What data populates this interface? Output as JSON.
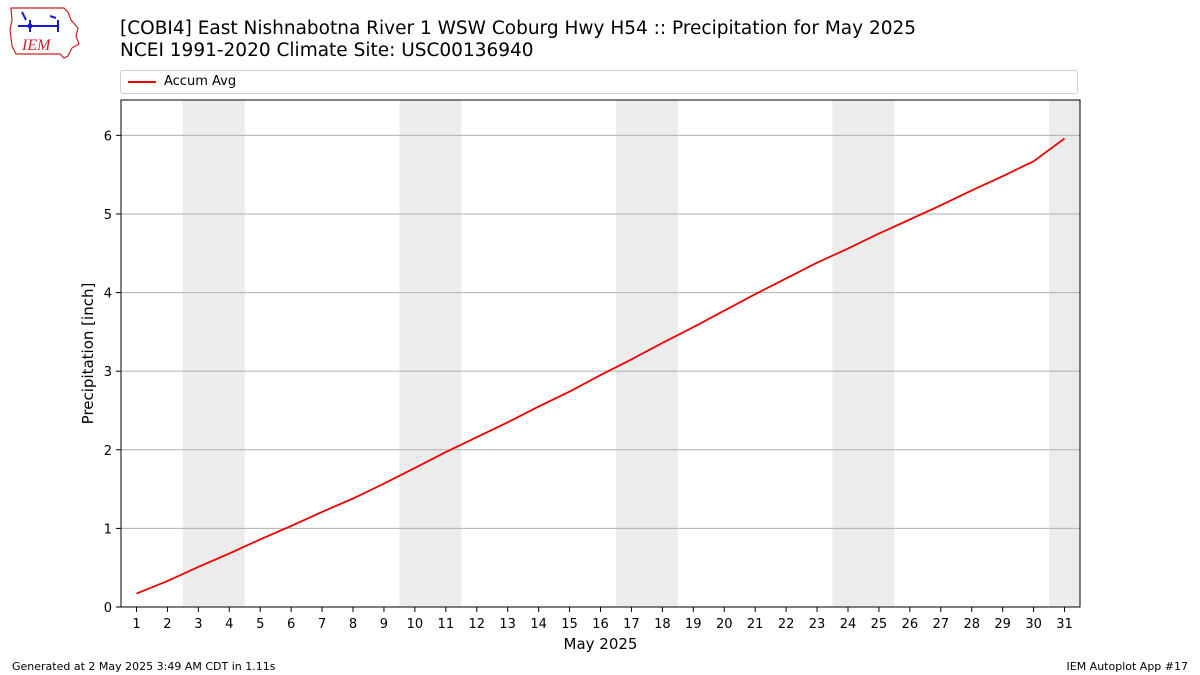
{
  "header": {
    "title_line1": "[COBI4] East Nishnabotna River 1 WSW Coburg Hwy H54 :: Precipitation for May 2025",
    "title_line2": "NCEI 1991-2020 Climate Site: USC00136940",
    "logo_text": "IEM"
  },
  "footer": {
    "generated": "Generated at 2 May 2025 3:49 AM CDT in 1.11s",
    "app": "IEM Autoplot App #17"
  },
  "colors": {
    "line": "#ee0000",
    "weekend_band": "#ececec",
    "grid": "#b0b0b0",
    "logo": "#cc2222"
  },
  "chart_data": {
    "type": "line",
    "xlabel": "May 2025",
    "ylabel": "Precipitation [inch]",
    "x": [
      1,
      2,
      3,
      4,
      5,
      6,
      7,
      8,
      9,
      10,
      11,
      12,
      13,
      14,
      15,
      16,
      17,
      18,
      19,
      20,
      21,
      22,
      23,
      24,
      25,
      26,
      27,
      28,
      29,
      30,
      31
    ],
    "xticks": [
      "1",
      "2",
      "3",
      "4",
      "5",
      "6",
      "7",
      "8",
      "9",
      "10",
      "11",
      "12",
      "13",
      "14",
      "15",
      "16",
      "17",
      "18",
      "19",
      "20",
      "21",
      "22",
      "23",
      "24",
      "25",
      "26",
      "27",
      "28",
      "29",
      "30",
      "31"
    ],
    "xlim": [
      0.5,
      31.5
    ],
    "ylim": [
      0,
      6.45
    ],
    "yticks": [
      0,
      1,
      2,
      3,
      4,
      5,
      6
    ],
    "grid": "horizontal",
    "legend_position": "top",
    "weekend_spans": [
      [
        2.5,
        4.5
      ],
      [
        9.5,
        11.5
      ],
      [
        16.5,
        18.5
      ],
      [
        23.5,
        25.5
      ],
      [
        30.5,
        31.5
      ]
    ],
    "series": [
      {
        "name": "Accum Avg",
        "values": [
          0.17,
          0.33,
          0.51,
          0.68,
          0.86,
          1.03,
          1.21,
          1.38,
          1.57,
          1.77,
          1.97,
          2.16,
          2.35,
          2.55,
          2.74,
          2.95,
          3.15,
          3.36,
          3.56,
          3.77,
          3.98,
          4.18,
          4.38,
          4.56,
          4.75,
          4.93,
          5.11,
          5.3,
          5.48,
          5.67,
          5.96
        ]
      }
    ]
  }
}
